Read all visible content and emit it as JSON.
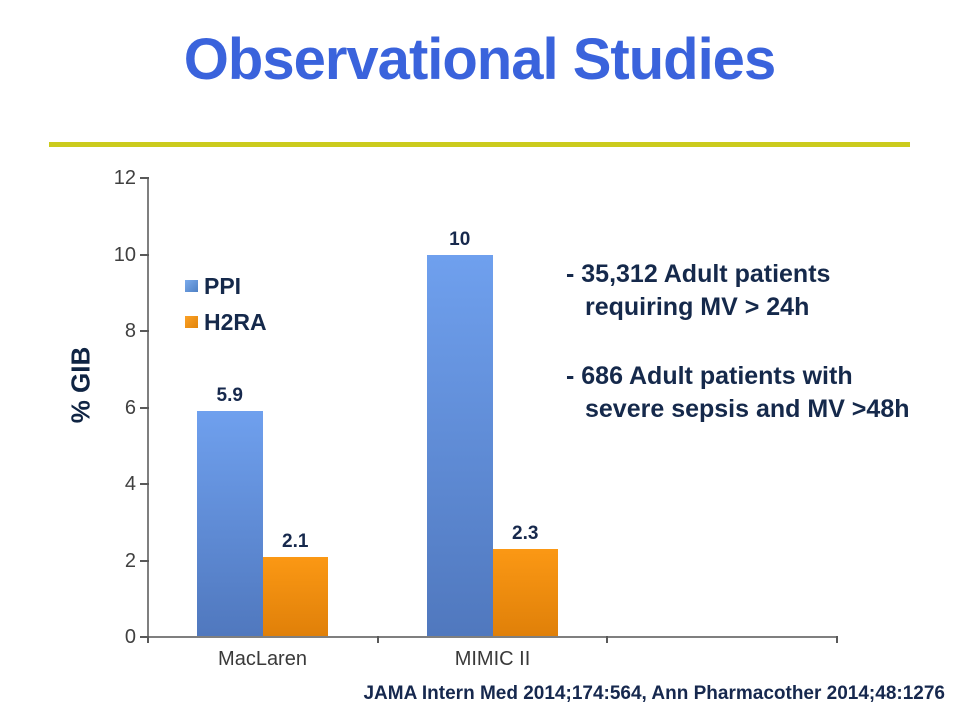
{
  "slide": {
    "title": "Observational Studies",
    "footer": "JAMA Intern Med 2014;174:564, Ann Pharmacother 2014;48:1276"
  },
  "bullets": [
    {
      "line1": "- 35,312 Adult patients",
      "line2": "requiring MV > 24h"
    },
    {
      "line1": "- 686 Adult patients with",
      "line2": "severe sepsis and MV >48h"
    }
  ],
  "chart_data": {
    "type": "bar",
    "title": "",
    "xlabel": "",
    "ylabel": "% GIB",
    "categories": [
      "MacLaren",
      "MIMIC II"
    ],
    "series": [
      {
        "name": "PPI",
        "color": "#5B8FD9",
        "values": [
          5.9,
          10
        ],
        "labels": [
          "5.9",
          "10"
        ]
      },
      {
        "name": "H2RA",
        "color": "#F08C09",
        "values": [
          2.1,
          2.3
        ],
        "labels": [
          "2.1",
          "2.3"
        ]
      }
    ],
    "ylim": [
      0,
      12
    ],
    "ytick_step": 2,
    "grid": false,
    "legend_position": "inside-top-left"
  },
  "colors": {
    "title_blue": "#3A63DC",
    "rule_yellow": "#CBCB1D",
    "navy": "#15294B",
    "axis_gray": "#7F7F7F",
    "tick_text": "#404040",
    "bar_blue_top": "#6FA0EE",
    "bar_blue_bottom": "#5078BE",
    "bar_orange_top": "#FB9814",
    "bar_orange_bottom": "#E08009"
  }
}
